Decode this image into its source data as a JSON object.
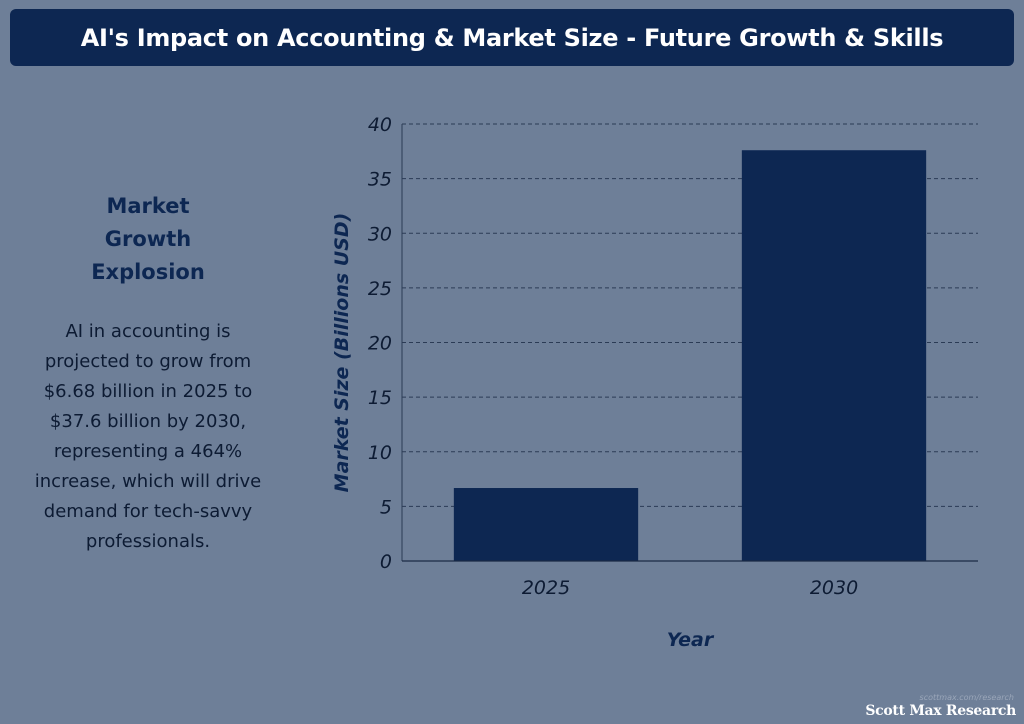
{
  "title": "AI's Impact on Accounting & Market Size - Future Growth & Skills",
  "side_panel": {
    "heading": "Market Growth Explosion",
    "body": "AI in accounting is projected to grow from $6.68 billion in 2025 to $37.6 billion by 2030, representing a 464% increase, which will drive demand for tech-savvy professionals."
  },
  "credit": {
    "url": "scottmax.com/research",
    "logo": "Scott Max Research"
  },
  "colors": {
    "background": "#6e7f98",
    "banner": "#0d2752",
    "bar": "#0d2752",
    "grid": "#2b3b55"
  },
  "chart_data": {
    "type": "bar",
    "categories": [
      "2025",
      "2030"
    ],
    "values": [
      6.68,
      37.6
    ],
    "title": "",
    "xlabel": "Year",
    "ylabel": "Market Size (Billions USD)",
    "ylim": [
      0,
      40
    ],
    "yticks": [
      0,
      5,
      10,
      15,
      20,
      25,
      30,
      35,
      40
    ],
    "grid": true,
    "grid_style": "dashed",
    "legend": "none"
  }
}
